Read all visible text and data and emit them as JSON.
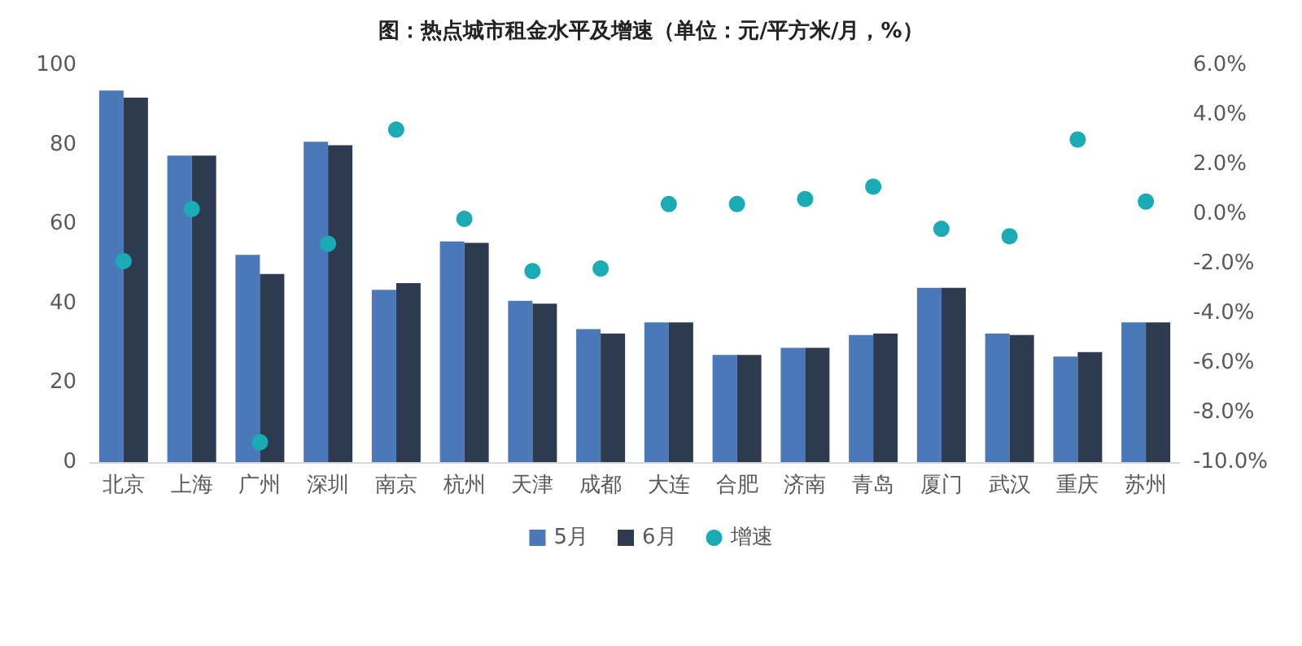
{
  "chart_data": {
    "type": "bar",
    "title": "图：热点城市租金水平及增速（单位：元/平方米/月，%）",
    "categories": [
      "北京",
      "上海",
      "广州",
      "深圳",
      "南京",
      "杭州",
      "天津",
      "成都",
      "大连",
      "合肥",
      "济南",
      "青岛",
      "厦门",
      "武汉",
      "重庆",
      "苏州"
    ],
    "series": [
      {
        "name": "5月",
        "color": "#4a78b8",
        "values": [
          93.6,
          77.2,
          52.2,
          80.7,
          43.4,
          55.6,
          40.6,
          33.5,
          35.2,
          27.0,
          28.8,
          32.0,
          43.9,
          32.4,
          26.6,
          35.2
        ]
      },
      {
        "name": "6月",
        "color": "#2e3a4f",
        "values": [
          91.8,
          77.2,
          47.4,
          79.8,
          45.1,
          55.2,
          39.9,
          32.4,
          35.2,
          27.0,
          28.8,
          32.4,
          43.9,
          32.0,
          27.7,
          35.2
        ]
      },
      {
        "name": "增速",
        "type": "scatter",
        "axis": "y2",
        "color": "#1aabb5",
        "values": [
          -1.9,
          0.2,
          -9.2,
          -1.2,
          3.4,
          -0.2,
          -2.3,
          -2.2,
          0.4,
          0.4,
          0.6,
          1.1,
          -0.6,
          -0.9,
          3.0,
          0.5
        ]
      }
    ],
    "ylim": [
      0,
      100
    ],
    "yticks": [
      0,
      20,
      40,
      60,
      80,
      100
    ],
    "y2lim": [
      -10,
      6
    ],
    "y2ticks": [
      {
        "value": -10,
        "label": "-10.0%"
      },
      {
        "value": -8,
        "label": "-8.0%"
      },
      {
        "value": -6,
        "label": "-6.0%"
      },
      {
        "value": -4,
        "label": "-4.0%"
      },
      {
        "value": -2,
        "label": "-2.0%"
      },
      {
        "value": 0,
        "label": "0.0%"
      },
      {
        "value": 2,
        "label": "2.0%"
      },
      {
        "value": 4,
        "label": "4.0%"
      },
      {
        "value": 6,
        "label": "6.0%"
      }
    ],
    "grid": false,
    "legend": "bottom",
    "marker": "circle"
  }
}
